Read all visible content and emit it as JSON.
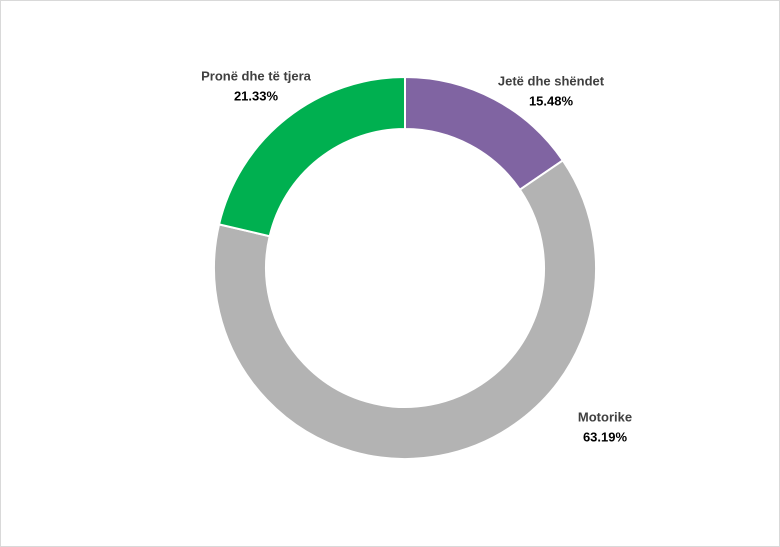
{
  "chart_data": {
    "type": "pie",
    "categories": [
      "Jetë dhe shëndet",
      "Motorike",
      "Pronë dhe të tjera"
    ],
    "values": [
      15.48,
      63.19,
      21.33
    ],
    "value_labels": [
      "15.48%",
      "63.19%",
      "21.33%"
    ],
    "colors": [
      "#8064a2",
      "#b3b3b3",
      "#00b050"
    ]
  }
}
